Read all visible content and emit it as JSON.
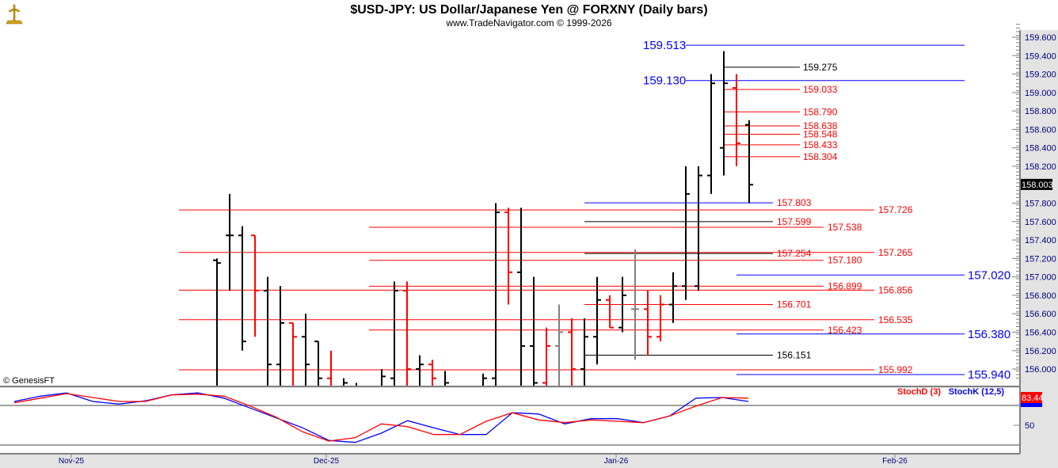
{
  "header": {
    "title": "$USD-JPY:  US Dollar/Japanese Yen @ FORXNY  (Daily bars)",
    "subtitle": "www.TradeNavigator.com © 1999-2026",
    "watermark": "© GenesisFT"
  },
  "colors": {
    "up": "#000000",
    "down": "#ff0000",
    "neutral": "#808080",
    "blue": "#0000ff",
    "axisText": "#00007f"
  },
  "chart_data": [
    {
      "type": "ohlc",
      "title": "$USD-JPY Daily bars",
      "ylim": [
        155.85,
        159.75
      ],
      "yticks": [
        "159.600",
        "159.400",
        "159.200",
        "159.000",
        "158.800",
        "158.600",
        "158.400",
        "158.200",
        "157.800",
        "157.600",
        "157.400",
        "157.200",
        "157.000",
        "156.800",
        "156.600",
        "156.400",
        "156.200",
        "156.000"
      ],
      "last_price": "158.003",
      "xticks": [
        "Nov-25",
        "Dec-25",
        "Jan-26",
        "Feb-26"
      ],
      "bars": [
        {
          "h": 157.2,
          "l": 155.5,
          "o": 157.18,
          "c": 157.15,
          "color": "up"
        },
        {
          "h": 157.9,
          "l": 156.85,
          "o": 157.45,
          "c": 157.45,
          "color": "up"
        },
        {
          "h": 157.55,
          "l": 156.2,
          "o": 157.45,
          "c": 156.3,
          "color": "up"
        },
        {
          "h": 157.45,
          "l": 156.35,
          "o": 157.45,
          "c": 156.85,
          "color": "down"
        },
        {
          "h": 157.0,
          "l": 155.5,
          "o": 156.85,
          "c": 156.05,
          "color": "up"
        },
        {
          "h": 156.9,
          "l": 155.5,
          "o": 156.05,
          "c": 156.5,
          "color": "up"
        },
        {
          "h": 156.5,
          "l": 155.5,
          "o": 156.5,
          "c": 156.35,
          "color": "down"
        },
        {
          "h": 156.6,
          "l": 155.5,
          "o": 156.35,
          "c": 156.05,
          "color": "up"
        },
        {
          "h": 156.3,
          "l": 155.5,
          "o": 156.3,
          "c": 155.9,
          "color": "up"
        },
        {
          "h": 156.2,
          "l": 155.5,
          "o": 155.9,
          "c": 155.7,
          "color": "down"
        },
        {
          "h": 155.9,
          "l": 155.5,
          "o": 155.7,
          "c": 155.85,
          "color": "up"
        },
        {
          "h": 155.85,
          "l": 155.5,
          "o": 155.8,
          "c": 155.7,
          "color": "up"
        },
        {
          "h": 155.8,
          "l": 155.5,
          "o": 155.7,
          "c": 155.6,
          "color": "up"
        },
        {
          "h": 156.0,
          "l": 155.5,
          "o": 155.7,
          "c": 155.92,
          "color": "up"
        },
        {
          "h": 156.95,
          "l": 155.5,
          "o": 155.9,
          "c": 156.85,
          "color": "up"
        },
        {
          "h": 156.95,
          "l": 155.5,
          "o": 156.85,
          "c": 156.0,
          "color": "down"
        },
        {
          "h": 156.15,
          "l": 155.5,
          "o": 156.0,
          "c": 156.05,
          "color": "up"
        },
        {
          "h": 156.1,
          "l": 155.5,
          "o": 156.05,
          "c": 155.9,
          "color": "down"
        },
        {
          "h": 155.98,
          "l": 155.5,
          "o": 155.8,
          "c": 155.85,
          "color": "up"
        },
        {
          "h": 155.8,
          "l": 155.5,
          "o": 155.7,
          "c": 155.75,
          "color": "up"
        },
        {
          "h": 155.7,
          "l": 155.4,
          "o": 155.5,
          "c": 155.6,
          "color": "up"
        },
        {
          "h": 155.95,
          "l": 155.5,
          "o": 155.6,
          "c": 155.9,
          "color": "up"
        },
        {
          "h": 157.8,
          "l": 155.5,
          "o": 155.9,
          "c": 157.7,
          "color": "up"
        },
        {
          "h": 157.75,
          "l": 156.7,
          "o": 157.7,
          "c": 157.05,
          "color": "down"
        },
        {
          "h": 157.75,
          "l": 155.5,
          "o": 157.05,
          "c": 156.25,
          "color": "up"
        },
        {
          "h": 157.0,
          "l": 155.5,
          "o": 156.25,
          "c": 155.85,
          "color": "up"
        },
        {
          "h": 156.45,
          "l": 155.5,
          "o": 155.85,
          "c": 156.25,
          "color": "down"
        },
        {
          "h": 156.7,
          "l": 155.5,
          "o": 156.25,
          "c": 156.4,
          "color": "neutral"
        },
        {
          "h": 156.55,
          "l": 155.5,
          "o": 156.4,
          "c": 156.0,
          "color": "down"
        },
        {
          "h": 156.55,
          "l": 155.5,
          "o": 156.0,
          "c": 156.35,
          "color": "up"
        },
        {
          "h": 157.0,
          "l": 156.05,
          "o": 156.35,
          "c": 156.75,
          "color": "up"
        },
        {
          "h": 156.8,
          "l": 156.45,
          "o": 156.75,
          "c": 156.45,
          "color": "down"
        },
        {
          "h": 157.0,
          "l": 156.4,
          "o": 156.45,
          "c": 156.8,
          "color": "up"
        },
        {
          "h": 157.3,
          "l": 156.1,
          "o": 156.65,
          "c": 156.65,
          "color": "neutral"
        },
        {
          "h": 156.85,
          "l": 156.15,
          "o": 156.65,
          "c": 156.35,
          "color": "down"
        },
        {
          "h": 156.8,
          "l": 156.3,
          "o": 156.35,
          "c": 156.7,
          "color": "down"
        },
        {
          "h": 157.05,
          "l": 156.5,
          "o": 156.7,
          "c": 156.9,
          "color": "up"
        },
        {
          "h": 158.2,
          "l": 156.75,
          "o": 156.9,
          "c": 157.9,
          "color": "up"
        },
        {
          "h": 158.2,
          "l": 156.85,
          "o": 156.9,
          "c": 158.1,
          "color": "up"
        },
        {
          "h": 159.2,
          "l": 157.9,
          "o": 158.1,
          "c": 159.1,
          "color": "up"
        },
        {
          "h": 159.45,
          "l": 158.1,
          "o": 158.4,
          "c": 159.1,
          "color": "up"
        },
        {
          "h": 159.2,
          "l": 158.2,
          "o": 159.05,
          "c": 158.45,
          "color": "down"
        },
        {
          "h": 158.7,
          "l": 157.8,
          "o": 158.65,
          "c": 158.0,
          "color": "up"
        }
      ],
      "levels": [
        {
          "label": "159.513",
          "value": 159.513,
          "line": "blue",
          "text": "blue",
          "style": "left"
        },
        {
          "label": "159.130",
          "value": 159.13,
          "line": "blue",
          "text": "blue",
          "style": "left"
        },
        {
          "label": "157.020",
          "value": 157.02,
          "line": "blue",
          "text": "blue",
          "style": "far"
        },
        {
          "label": "156.380",
          "value": 156.38,
          "line": "blue",
          "text": "blue",
          "style": "far"
        },
        {
          "label": "155.940",
          "value": 155.94,
          "line": "blue",
          "text": "blue",
          "style": "far"
        },
        {
          "label": "159.275",
          "value": 159.275,
          "line": "up",
          "text": "up",
          "style": "top"
        },
        {
          "label": "159.033",
          "value": 159.033,
          "line": "down",
          "text": "down",
          "style": "top"
        },
        {
          "label": "158.790",
          "value": 158.79,
          "line": "down",
          "text": "down",
          "style": "top"
        },
        {
          "label": "158.638",
          "value": 158.638,
          "line": "down",
          "text": "down",
          "style": "top"
        },
        {
          "label": "158.548",
          "value": 158.548,
          "line": "down",
          "text": "down",
          "style": "top"
        },
        {
          "label": "158.433",
          "value": 158.433,
          "line": "down",
          "text": "down",
          "style": "top"
        },
        {
          "label": "158.304",
          "value": 158.304,
          "line": "down",
          "text": "down",
          "style": "top"
        },
        {
          "label": "157.803",
          "value": 157.803,
          "line": "blue",
          "text": "down",
          "style": "mid"
        },
        {
          "label": "157.599",
          "value": 157.599,
          "line": "up",
          "text": "down",
          "style": "mid"
        },
        {
          "label": "157.254",
          "value": 157.254,
          "line": "up",
          "text": "down",
          "style": "mid"
        },
        {
          "label": "156.701",
          "value": 156.701,
          "line": "down",
          "text": "down",
          "style": "mid"
        },
        {
          "label": "156.151",
          "value": 156.151,
          "line": "up",
          "text": "up",
          "style": "mid"
        },
        {
          "label": "157.538",
          "value": 157.538,
          "line": "down",
          "text": "down",
          "style": "wide"
        },
        {
          "label": "157.180",
          "value": 157.18,
          "line": "down",
          "text": "down",
          "style": "wide"
        },
        {
          "label": "156.899",
          "value": 156.899,
          "line": "down",
          "text": "down",
          "style": "wide"
        },
        {
          "label": "156.423",
          "value": 156.423,
          "line": "down",
          "text": "down",
          "style": "wide"
        },
        {
          "label": "157.726",
          "value": 157.726,
          "line": "down",
          "text": "down",
          "style": "full"
        },
        {
          "label": "157.265",
          "value": 157.265,
          "line": "down",
          "text": "down",
          "style": "full"
        },
        {
          "label": "156.856",
          "value": 156.856,
          "line": "down",
          "text": "down",
          "style": "full"
        },
        {
          "label": "156.535",
          "value": 156.535,
          "line": "down",
          "text": "down",
          "style": "full"
        },
        {
          "label": "155.992",
          "value": 155.992,
          "line": "down",
          "text": "down",
          "style": "full"
        }
      ]
    },
    {
      "type": "line",
      "title": "Stochastic",
      "ylim": [
        0,
        100
      ],
      "yticks": [
        "50"
      ],
      "reference_lines": [
        80,
        20
      ],
      "last_value": "83.44",
      "legend": [
        {
          "name": "StochD (3)",
          "color": "#ff0000"
        },
        {
          "name": "StochK (12,5)",
          "color": "#0000ff"
        }
      ],
      "series": [
        {
          "name": "StochK (12,5)",
          "values": [
            86,
            94,
            99,
            86,
            82,
            87,
            96,
            99,
            91,
            76,
            61,
            46,
            27,
            24,
            38,
            57,
            46,
            36,
            36,
            69,
            67,
            52,
            60,
            60,
            54,
            64,
            91,
            92,
            86
          ]
        },
        {
          "name": "StochD (3)",
          "values": [
            84,
            91,
            98,
            92,
            86,
            86,
            96,
            97,
            94,
            79,
            62,
            40,
            26,
            31,
            52,
            48,
            36,
            36,
            56,
            69,
            58,
            54,
            58,
            56,
            54,
            64,
            79,
            92,
            91
          ]
        }
      ]
    }
  ]
}
